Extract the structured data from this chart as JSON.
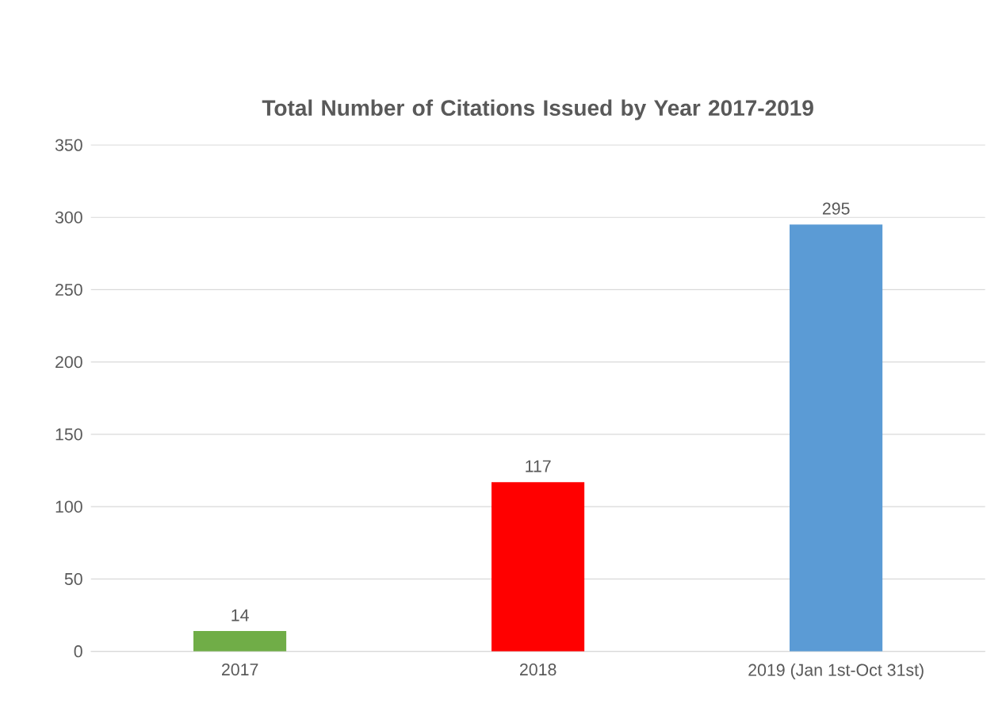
{
  "chart_data": {
    "type": "bar",
    "title": "Total Number of Citations Issued by Year 2017-2019",
    "categories": [
      "2017",
      "2018",
      "2019 (Jan 1st-Oct 31st)"
    ],
    "values": [
      14,
      117,
      295
    ],
    "colors": [
      "#70ad47",
      "#ff0000",
      "#5b9bd5"
    ],
    "ylim": [
      0,
      350
    ],
    "yticks": [
      0,
      50,
      100,
      150,
      200,
      250,
      300,
      350
    ],
    "grid": "y",
    "data_labels": true
  }
}
